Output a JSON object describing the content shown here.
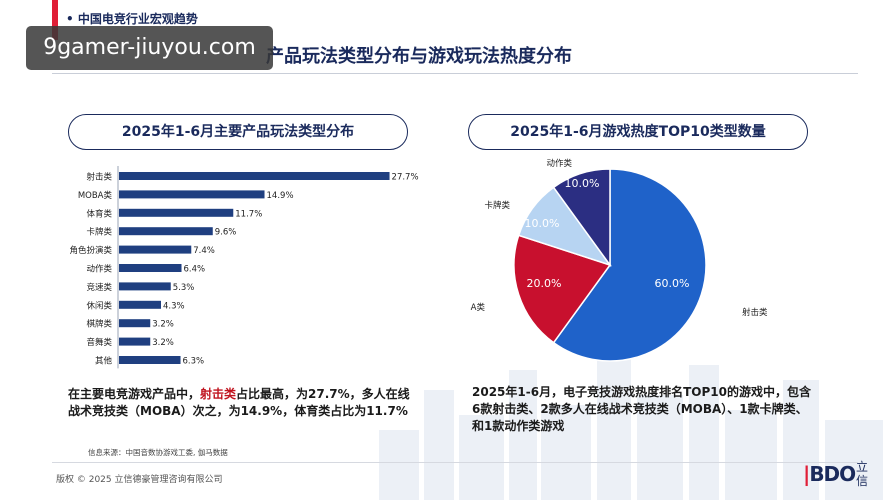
{
  "header": {
    "section_label": "• 中国电竞行业宏观趋势",
    "watermark": "9gamer-jiuyou.com",
    "title": "产品玩法类型分布与游戏玩法热度分布"
  },
  "left_panel": {
    "title": "2025年1-6月主要产品玩法类型分布",
    "desc_pre": "在主要电竞游戏产品中，",
    "desc_highlight": "射击类",
    "desc_post": "占比最高，为27.7%，多人在线战术竞技类（MOBA）次之，为14.9%，体育类占比为11.7%",
    "source": "信息来源：中国音数协游戏工委, 伽马数据"
  },
  "right_panel": {
    "title": "2025年1-6月游戏热度TOP10类型数量",
    "desc": "2025年1-6月，电子竞技游戏热度排名TOP10的游戏中，包含6款射击类、2款多人在线战术竞技类（MOBA）、1款卡牌类、和1款动作类游戏"
  },
  "footer": {
    "copyright": "版权 © 2025 立信德豪管理咨询有限公司",
    "logo": "BDO",
    "logo_cn": "立信"
  },
  "colors": {
    "navy": "#1a2a5c",
    "accent_red": "#e01e37",
    "bar": "#1f3f80"
  },
  "chart_data": [
    {
      "type": "bar",
      "orientation": "horizontal",
      "title": "2025年1-6月主要产品玩法类型分布",
      "categories": [
        "射击类",
        "MOBA类",
        "体育类",
        "卡牌类",
        "角色扮演类",
        "动作类",
        "竞速类",
        "休闲类",
        "棋牌类",
        "音舞类",
        "其他"
      ],
      "values": [
        27.7,
        14.9,
        11.7,
        9.6,
        7.4,
        6.4,
        5.3,
        4.3,
        3.2,
        3.2,
        6.3
      ],
      "value_labels": [
        "27.7%",
        "14.9%",
        "11.7%",
        "9.6%",
        "7.4%",
        "6.4%",
        "5.3%",
        "4.3%",
        "3.2%",
        "3.2%",
        "6.3%"
      ],
      "xlim": [
        0,
        30
      ],
      "grid": false,
      "color": "#1f3f80"
    },
    {
      "type": "pie",
      "title": "2025年1-6月游戏热度TOP10类型数量",
      "categories": [
        "射击类",
        "MOBA类",
        "卡牌类",
        "动作类"
      ],
      "values": [
        60.0,
        20.0,
        10.0,
        10.0
      ],
      "value_labels": [
        "60.0%",
        "20.0%",
        "10.0%",
        "10.0%"
      ],
      "colors": [
        "#1f62c9",
        "#c8102e",
        "#b7d4f2",
        "#2b2e82"
      ]
    }
  ]
}
